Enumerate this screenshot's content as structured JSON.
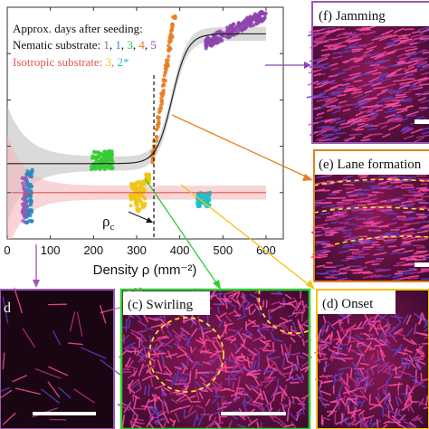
{
  "chart_data": {
    "type": "scatter",
    "title": "",
    "xlabel": "Density ρ (mm⁻²)",
    "ylabel": "",
    "xlim": [
      0,
      640
    ],
    "xticks": [
      0,
      100,
      200,
      300,
      400,
      500,
      600
    ],
    "xtick_labels": [
      "0",
      "100",
      "200",
      "300",
      "400",
      "500",
      "600"
    ],
    "grid": false,
    "legend": {
      "placement": "top-left",
      "heading": "Approx. days after seeding:",
      "nematic_label": "Nematic substrate: ",
      "nematic_days": [
        "1",
        "1",
        "3",
        "4",
        "5"
      ],
      "isotropic_label": "Isotropic substrate: ",
      "isotropic_days": [
        "3",
        "2*"
      ],
      "day_sep": ", "
    },
    "critical_density": {
      "x": 340,
      "label": "ρ",
      "label_sub": "c"
    },
    "series": [
      {
        "color": "#9b59b6",
        "x_range": [
          35,
          45
        ],
        "y_range": [
          0.06,
          0.28
        ]
      },
      {
        "color": "#2e86c1",
        "x_range": [
          45,
          58
        ],
        "y_range": [
          0.07,
          0.3
        ]
      },
      {
        "color": "#33cc33",
        "x_range": [
          195,
          245
        ],
        "y_range": [
          0.3,
          0.38
        ]
      },
      {
        "color": "#e67e22",
        "x_range": [
          335,
          390
        ],
        "y_range": [
          0.33,
          0.96
        ]
      },
      {
        "color": "#8e44ad",
        "x_range": [
          460,
          600
        ],
        "y_range": [
          0.82,
          0.98
        ]
      },
      {
        "color": "#f1c40f",
        "x_range": [
          285,
          320
        ],
        "y_range": [
          0.12,
          0.25
        ]
      },
      {
        "color": "#f1c40f",
        "x_range": [
          322,
          330
        ],
        "y_range": [
          0.24,
          0.28
        ]
      },
      {
        "color": "#20c0c8",
        "x_range": [
          440,
          470
        ],
        "y_range": [
          0.14,
          0.2
        ]
      }
    ],
    "fits": [
      {
        "kind": "nematic-sigmoid",
        "color": "#222222",
        "band": "#bbbbbb",
        "low": 0.325,
        "high": 0.885,
        "mid": 382,
        "width": 18
      },
      {
        "kind": "isotropic-flat",
        "color": "#e05555",
        "band": "#f4b8bc",
        "level": 0.2
      }
    ]
  },
  "panels": {
    "jamming": "(f) Jamming",
    "lane": "(e) Lane formation",
    "swirling": "(c) Swirling",
    "onset": "(d) Onset",
    "sparse": "d"
  },
  "colors": {
    "jamming_frame": "#9b59b6",
    "lane_frame": "#e67e22",
    "swirling_frame": "#33cc33",
    "onset_frame": "#f1c40f",
    "sparse_frame": "#9b59b6",
    "arrow_purple": "#8e44ad",
    "arrow_orange": "#e67e22",
    "arrow_green": "#33cc33",
    "arrow_yellow": "#f1c40f"
  }
}
